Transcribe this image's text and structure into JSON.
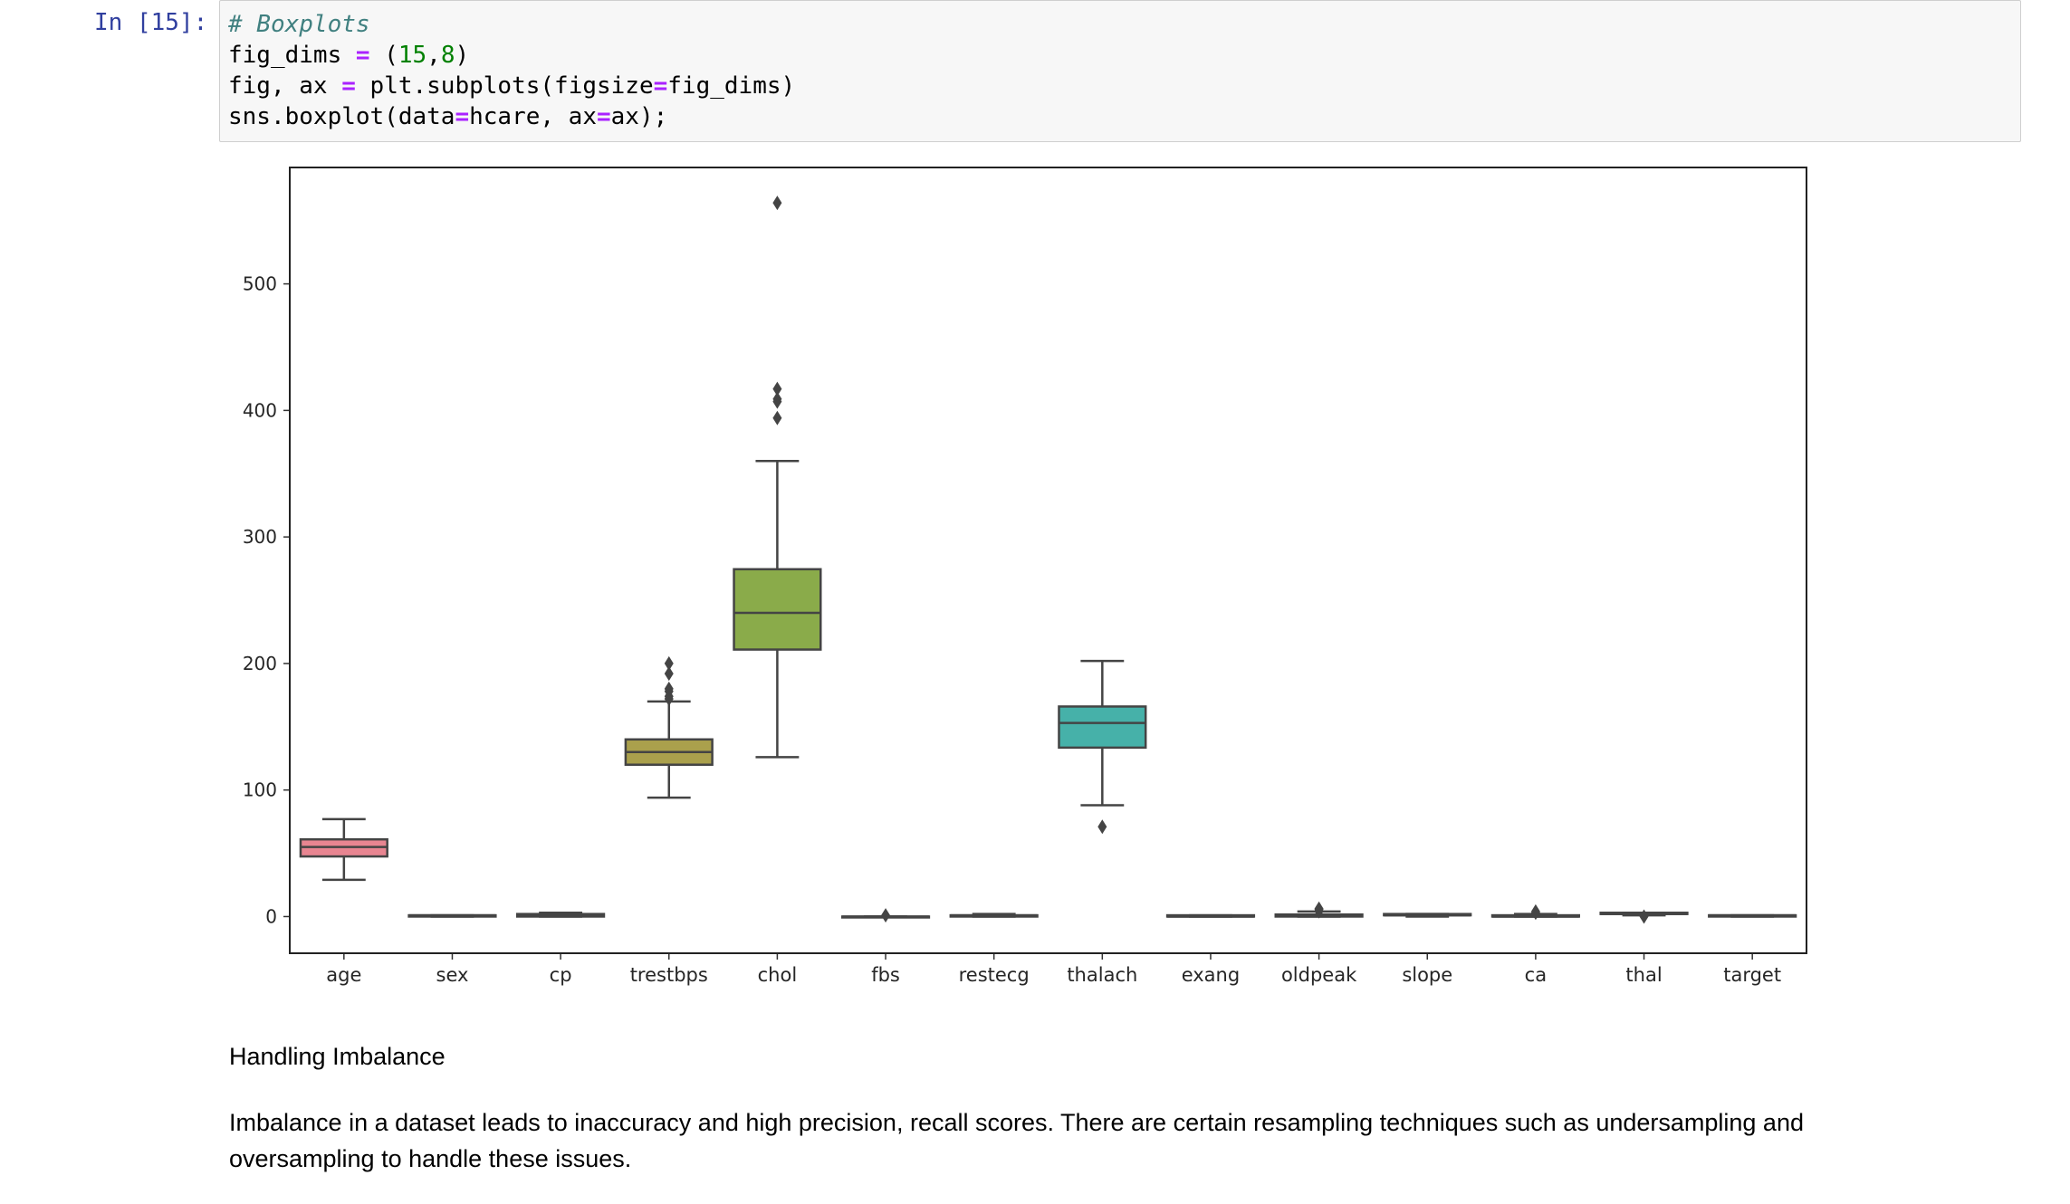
{
  "cell": {
    "prompt": "In [15]:",
    "code_lines": [
      [
        {
          "t": "# Boxplots",
          "c": "c"
        }
      ],
      [
        {
          "t": "fig_dims "
        },
        {
          "t": "=",
          "c": "o"
        },
        {
          "t": " ("
        },
        {
          "t": "15",
          "c": "n"
        },
        {
          "t": ","
        },
        {
          "t": "8",
          "c": "n"
        },
        {
          "t": ")"
        }
      ],
      [
        {
          "t": "fig, ax "
        },
        {
          "t": "=",
          "c": "o"
        },
        {
          "t": " plt.subplots(figsize"
        },
        {
          "t": "=",
          "c": "o"
        },
        {
          "t": "fig_dims)"
        }
      ],
      [
        {
          "t": "sns.boxplot(data"
        },
        {
          "t": "=",
          "c": "o"
        },
        {
          "t": "hcare, ax"
        },
        {
          "t": "=",
          "c": "o"
        },
        {
          "t": "ax);"
        }
      ]
    ]
  },
  "chart_data": {
    "type": "boxplot",
    "title": "",
    "xlabel": "",
    "ylabel": "",
    "ylim": [
      -29,
      592
    ],
    "yticks": [
      0,
      100,
      200,
      300,
      400,
      500
    ],
    "grid": false,
    "legend": "none",
    "categories": [
      "age",
      "sex",
      "cp",
      "trestbps",
      "chol",
      "fbs",
      "restecg",
      "thalach",
      "exang",
      "oldpeak",
      "slope",
      "ca",
      "thal",
      "target"
    ],
    "boxes": [
      {
        "name": "age",
        "color": "#e88591",
        "whisker_low": 29,
        "q1": 47.5,
        "median": 55,
        "q3": 61,
        "whisker_high": 77,
        "outliers": []
      },
      {
        "name": "sex",
        "color": "#d3928d",
        "whisker_low": 0,
        "q1": 0,
        "median": 1,
        "q3": 1,
        "whisker_high": 1,
        "outliers": []
      },
      {
        "name": "cp",
        "color": "#c3a06b",
        "whisker_low": 0,
        "q1": 0,
        "median": 1,
        "q3": 2,
        "whisker_high": 3,
        "outliers": []
      },
      {
        "name": "trestbps",
        "color": "#aaa04c",
        "whisker_low": 94,
        "q1": 120,
        "median": 130,
        "q3": 140,
        "whisker_high": 170,
        "outliers": [
          172,
          174,
          178,
          180,
          192,
          200
        ]
      },
      {
        "name": "chol",
        "color": "#8aab4a",
        "whisker_low": 126,
        "q1": 211,
        "median": 240,
        "q3": 274.5,
        "whisker_high": 360,
        "outliers": [
          394,
          407,
          409,
          417,
          564
        ]
      },
      {
        "name": "fbs",
        "color": "#5eb55b",
        "whisker_low": 0,
        "q1": 0,
        "median": 0,
        "q3": 0,
        "whisker_high": 0,
        "outliers": [
          1
        ]
      },
      {
        "name": "restecg",
        "color": "#4db59a",
        "whisker_low": 0,
        "q1": 0,
        "median": 1,
        "q3": 1,
        "whisker_high": 2,
        "outliers": []
      },
      {
        "name": "thalach",
        "color": "#46b1a9",
        "whisker_low": 88,
        "q1": 133.5,
        "median": 153,
        "q3": 166,
        "whisker_high": 202,
        "outliers": [
          71
        ]
      },
      {
        "name": "exang",
        "color": "#4aafbd",
        "whisker_low": 0,
        "q1": 0,
        "median": 0,
        "q3": 1,
        "whisker_high": 1,
        "outliers": []
      },
      {
        "name": "oldpeak",
        "color": "#5aaed7",
        "whisker_low": 0,
        "q1": 0,
        "median": 0.8,
        "q3": 1.6,
        "whisker_high": 4,
        "outliers": [
          4.2,
          4.4,
          5.6,
          6.2
        ]
      },
      {
        "name": "slope",
        "color": "#88a6e8",
        "whisker_low": 0,
        "q1": 1,
        "median": 1,
        "q3": 2,
        "whisker_high": 2,
        "outliers": []
      },
      {
        "name": "ca",
        "color": "#b89ae8",
        "whisker_low": 0,
        "q1": 0,
        "median": 0,
        "q3": 1,
        "whisker_high": 2,
        "outliers": [
          3,
          4
        ]
      },
      {
        "name": "thal",
        "color": "#e08ddc",
        "whisker_low": 1,
        "q1": 2,
        "median": 2,
        "q3": 3,
        "whisker_high": 3,
        "outliers": [
          0
        ]
      },
      {
        "name": "target",
        "color": "#e88ab5",
        "whisker_low": 0,
        "q1": 0,
        "median": 1,
        "q3": 1,
        "whisker_high": 1,
        "outliers": []
      }
    ]
  },
  "markdown": {
    "heading": "Handling Imbalance",
    "paragraph": "Imbalance in a dataset leads to inaccuracy and high precision, recall scores. There are certain resampling techniques such as undersampling and oversampling to handle these issues."
  }
}
